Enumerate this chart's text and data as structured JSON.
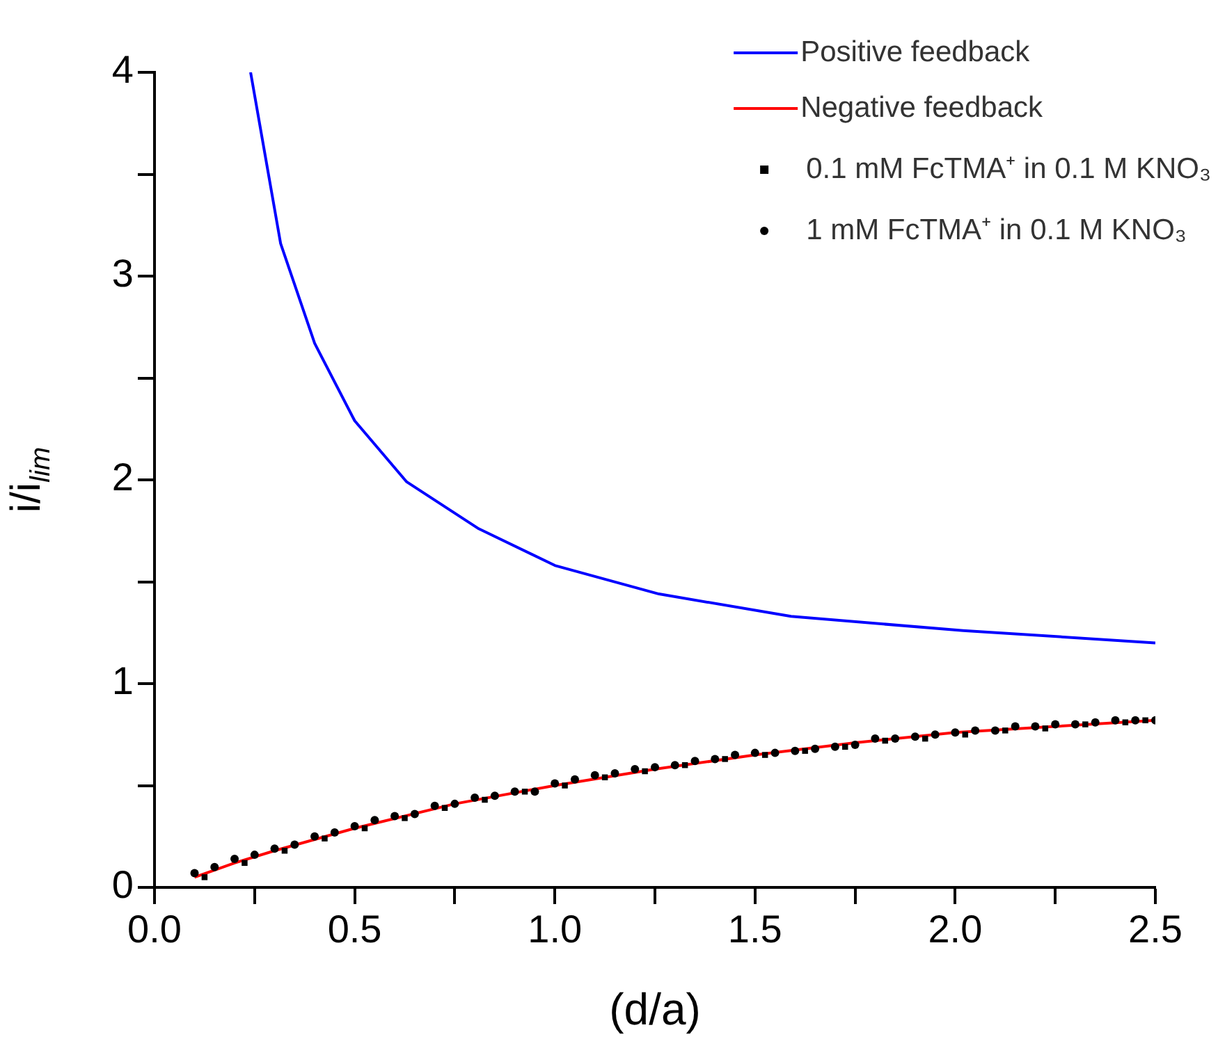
{
  "chart_data": {
    "type": "line",
    "xlabel": "(d/a)",
    "ylabel": "i/i$_{lim}$",
    "xlim": [
      0,
      2.5
    ],
    "xticks": [
      {
        "value": 0,
        "label": "0.0"
      },
      {
        "value": 0.25,
        "label": null
      },
      {
        "value": 0.5,
        "label": "0.5"
      },
      {
        "value": 0.75,
        "label": null
      },
      {
        "value": 1,
        "label": "1.0"
      },
      {
        "value": 1.25,
        "label": null
      },
      {
        "value": 1.5,
        "label": "1.5"
      },
      {
        "value": 1.75,
        "label": null
      },
      {
        "value": 2,
        "label": "2.0"
      },
      {
        "value": 2.25,
        "label": null
      },
      {
        "value": 2.5,
        "label": "2.5"
      }
    ],
    "ylim": [
      0,
      4
    ],
    "yticks": [
      0,
      {
        "value": 0.5,
        "label": null
      },
      1,
      {
        "value": 1.5,
        "label": null
      },
      2,
      {
        "value": 2.5,
        "label": null
      },
      3,
      {
        "value": 3.5,
        "label": null
      },
      4
    ],
    "grid": false,
    "legend": "top right",
    "series": [
      {
        "name": "Positive feedback",
        "type": "line",
        "marker": "none",
        "color": "#0000ff",
        "x": [
          0.24,
          0.315,
          0.4,
          0.5,
          0.63,
          0.81,
          1.0,
          1.26,
          1.59,
          2.02,
          2.5
        ],
        "values": [
          4.0,
          3.16,
          2.67,
          2.29,
          1.99,
          1.76,
          1.58,
          1.44,
          1.33,
          1.26,
          1.2
        ]
      },
      {
        "name": "Negative feedback",
        "type": "line",
        "marker": "none",
        "color": "#ff0000",
        "x": [
          0.1,
          0.2,
          0.3,
          0.5,
          0.75,
          1.0,
          1.25,
          1.5,
          1.75,
          2.0,
          2.25,
          2.5
        ],
        "values": [
          0.05,
          0.12,
          0.18,
          0.29,
          0.41,
          0.5,
          0.58,
          0.65,
          0.71,
          0.76,
          0.79,
          0.82
        ]
      },
      {
        "name": "0.1 mM FcTMA⁺ in 0.1 M KNO₃",
        "type": "scatter",
        "marker": "square",
        "color": "#000000",
        "x": [
          0.125,
          0.225,
          0.325,
          0.425,
          0.525,
          0.625,
          0.725,
          0.825,
          0.925,
          1.025,
          1.125,
          1.225,
          1.325,
          1.425,
          1.525,
          1.625,
          1.725,
          1.825,
          1.925,
          2.025,
          2.125,
          2.225,
          2.325,
          2.425,
          2.475
        ],
        "values": [
          0.05,
          0.12,
          0.18,
          0.24,
          0.29,
          0.34,
          0.39,
          0.43,
          0.47,
          0.5,
          0.54,
          0.57,
          0.6,
          0.63,
          0.65,
          0.67,
          0.69,
          0.72,
          0.73,
          0.75,
          0.77,
          0.78,
          0.8,
          0.81,
          0.82
        ]
      },
      {
        "name": "1 mM FcTMA⁺ in 0.1 M KNO₃",
        "type": "scatter",
        "marker": "circle",
        "color": "#000000",
        "x": [
          0.1,
          0.15,
          0.2,
          0.25,
          0.3,
          0.35,
          0.4,
          0.45,
          0.5,
          0.55,
          0.6,
          0.65,
          0.7,
          0.75,
          0.8,
          0.85,
          0.9,
          0.95,
          1.0,
          1.05,
          1.1,
          1.15,
          1.2,
          1.25,
          1.3,
          1.35,
          1.4,
          1.45,
          1.5,
          1.55,
          1.6,
          1.65,
          1.7,
          1.75,
          1.8,
          1.85,
          1.9,
          1.95,
          2.0,
          2.05,
          2.1,
          2.15,
          2.2,
          2.25,
          2.3,
          2.35,
          2.4,
          2.45,
          2.5
        ],
        "values": [
          0.07,
          0.1,
          0.14,
          0.16,
          0.19,
          0.21,
          0.25,
          0.27,
          0.3,
          0.33,
          0.35,
          0.36,
          0.4,
          0.41,
          0.44,
          0.45,
          0.47,
          0.47,
          0.51,
          0.53,
          0.55,
          0.56,
          0.58,
          0.59,
          0.6,
          0.62,
          0.63,
          0.65,
          0.66,
          0.66,
          0.67,
          0.68,
          0.69,
          0.7,
          0.73,
          0.73,
          0.74,
          0.75,
          0.76,
          0.77,
          0.77,
          0.79,
          0.79,
          0.8,
          0.8,
          0.81,
          0.82,
          0.82,
          0.82
        ]
      }
    ]
  }
}
